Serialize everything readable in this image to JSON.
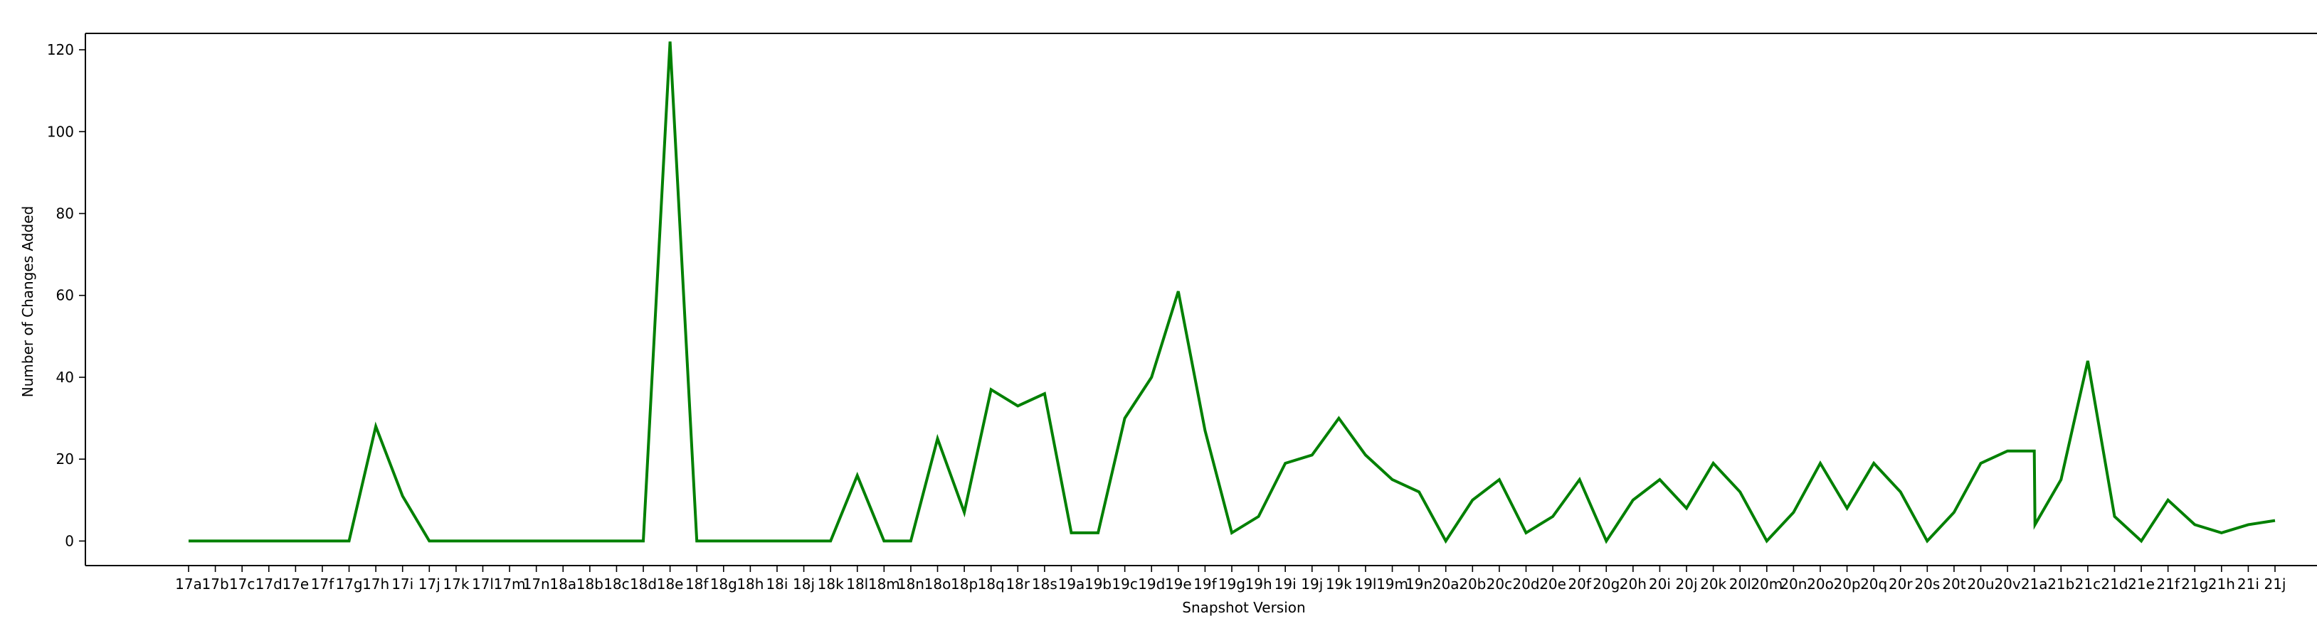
{
  "chart_data": {
    "type": "line",
    "title": "",
    "xlabel": "Snapshot Version",
    "ylabel": "Number of Changes Added",
    "ylim": [
      -6,
      124
    ],
    "yticks": [
      0,
      20,
      40,
      60,
      80,
      100,
      120
    ],
    "grid": false,
    "legend": "none",
    "line_color": "#008000",
    "categories": [
      "17a",
      "17b",
      "17c",
      "17d",
      "17e",
      "17f",
      "17g",
      "17h",
      "17i",
      "17j",
      "17k",
      "17l",
      "17m",
      "17n",
      "18a",
      "18b",
      "18c",
      "18d",
      "18e",
      "18f",
      "18g",
      "18h",
      "18i",
      "18j",
      "18k",
      "18l",
      "18m",
      "18n",
      "18o",
      "18p",
      "18q",
      "18r",
      "18s",
      "19a",
      "19b",
      "19c",
      "19d",
      "19e",
      "19f",
      "19g",
      "19h",
      "19i",
      "19j",
      "19k",
      "19l",
      "19m",
      "19n",
      "20a",
      "20b",
      "20c",
      "20d",
      "20e",
      "20f",
      "20g",
      "20h",
      "20i",
      "20j",
      "20k",
      "20l",
      "20m",
      "20n",
      "20o",
      "20p",
      "20q",
      "20r",
      "20s",
      "20t",
      "20u",
      "20v",
      "21a",
      "21b",
      "21c",
      "21d",
      "21e",
      "21f",
      "21g",
      "21h",
      "21i",
      "21j"
    ],
    "values": [
      0,
      0,
      0,
      0,
      0,
      0,
      0,
      28,
      11,
      0,
      0,
      0,
      0,
      0,
      0,
      0,
      0,
      0,
      122,
      0,
      0,
      0,
      0,
      0,
      0,
      16,
      0,
      0,
      25,
      7,
      37,
      33,
      36,
      2,
      2,
      30,
      40,
      61,
      27,
      2,
      6,
      19,
      21,
      30,
      21,
      15,
      12,
      0,
      10,
      15,
      2,
      6,
      15,
      0,
      10,
      15,
      8,
      19,
      12,
      0,
      7,
      19,
      8,
      19,
      12,
      0,
      7,
      19,
      22,
      22,
      15,
      44,
      6,
      0,
      10,
      4,
      2,
      4,
      5
    ],
    "extra_points": [
      {
        "after": "21a",
        "value": 4
      }
    ]
  }
}
